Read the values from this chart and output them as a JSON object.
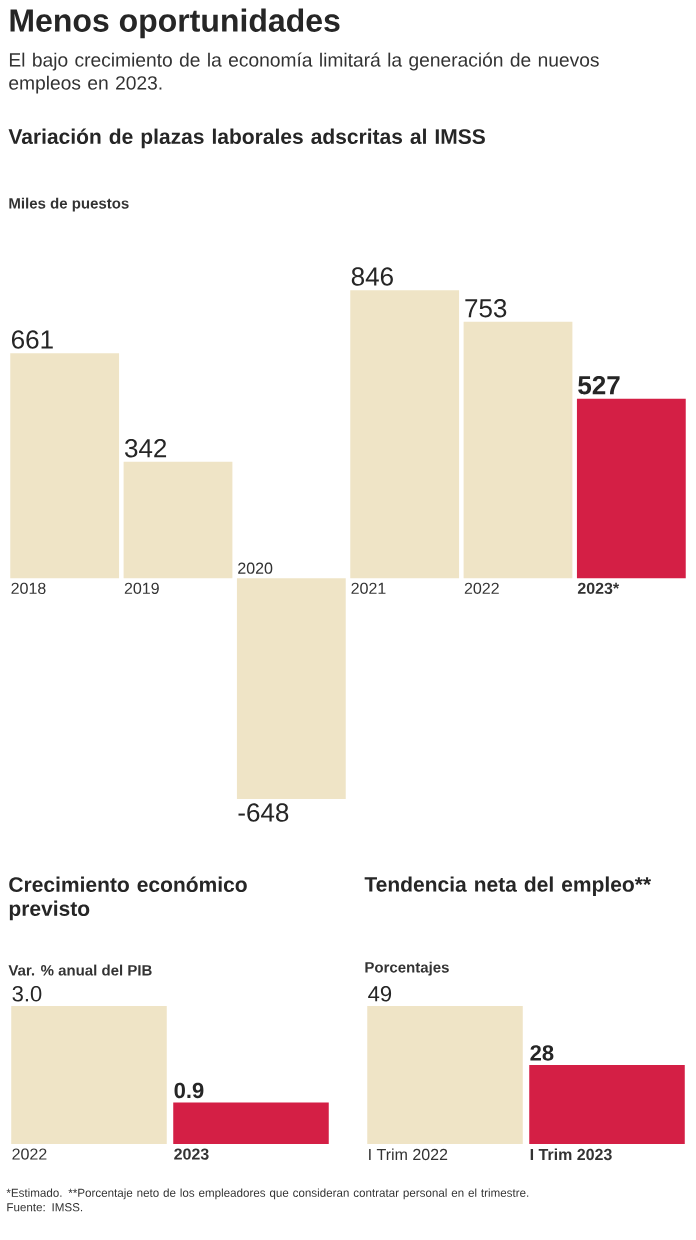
{
  "chart_data": [
    {
      "type": "other",
      "title": "Menos oportunidades",
      "subtitle": "El bajo crecimiento de la economía limitará la generación de nuevos empleos en 2023.",
      "annotations": [
        "*Estimado.",
        "**Porcentaje neto de los empleadores que consideran contratar personal en el trimestre.",
        "Fuente: IMSS."
      ]
    },
    {
      "type": "bar",
      "title": "Variación de plazas laborales adscritas al IMSS",
      "subtitle": "Miles de puestos",
      "categories": [
        "2018",
        "2019",
        "2020",
        "2021",
        "2022",
        "2023*"
      ],
      "values": [
        661,
        342,
        -648,
        846,
        753,
        527
      ],
      "value_labels": [
        "661",
        "342",
        "-648",
        "846",
        "753",
        "527"
      ],
      "colors": [
        "#efe4c6",
        "#efe4c6",
        "#efe4c6",
        "#efe4c6",
        "#efe4c6",
        "#d41f45"
      ]
    },
    {
      "type": "bar",
      "title": "Crecimiento económico previsto",
      "subtitle": "Var. % anual del PIB",
      "categories": [
        "2022",
        "2023"
      ],
      "values": [
        3.0,
        0.9
      ],
      "value_labels": [
        "3.0",
        "0.9"
      ],
      "colors": [
        "#efe4c6",
        "#d41f45"
      ]
    },
    {
      "type": "bar",
      "title": "Tendencia neta del empleo**",
      "subtitle": "Porcentajes",
      "categories": [
        "I Trim 2022",
        "I Trim 2023"
      ],
      "values": [
        49,
        28
      ],
      "value_labels": [
        "49",
        "28"
      ],
      "colors": [
        "#efe4c6",
        "#d41f45"
      ]
    }
  ]
}
